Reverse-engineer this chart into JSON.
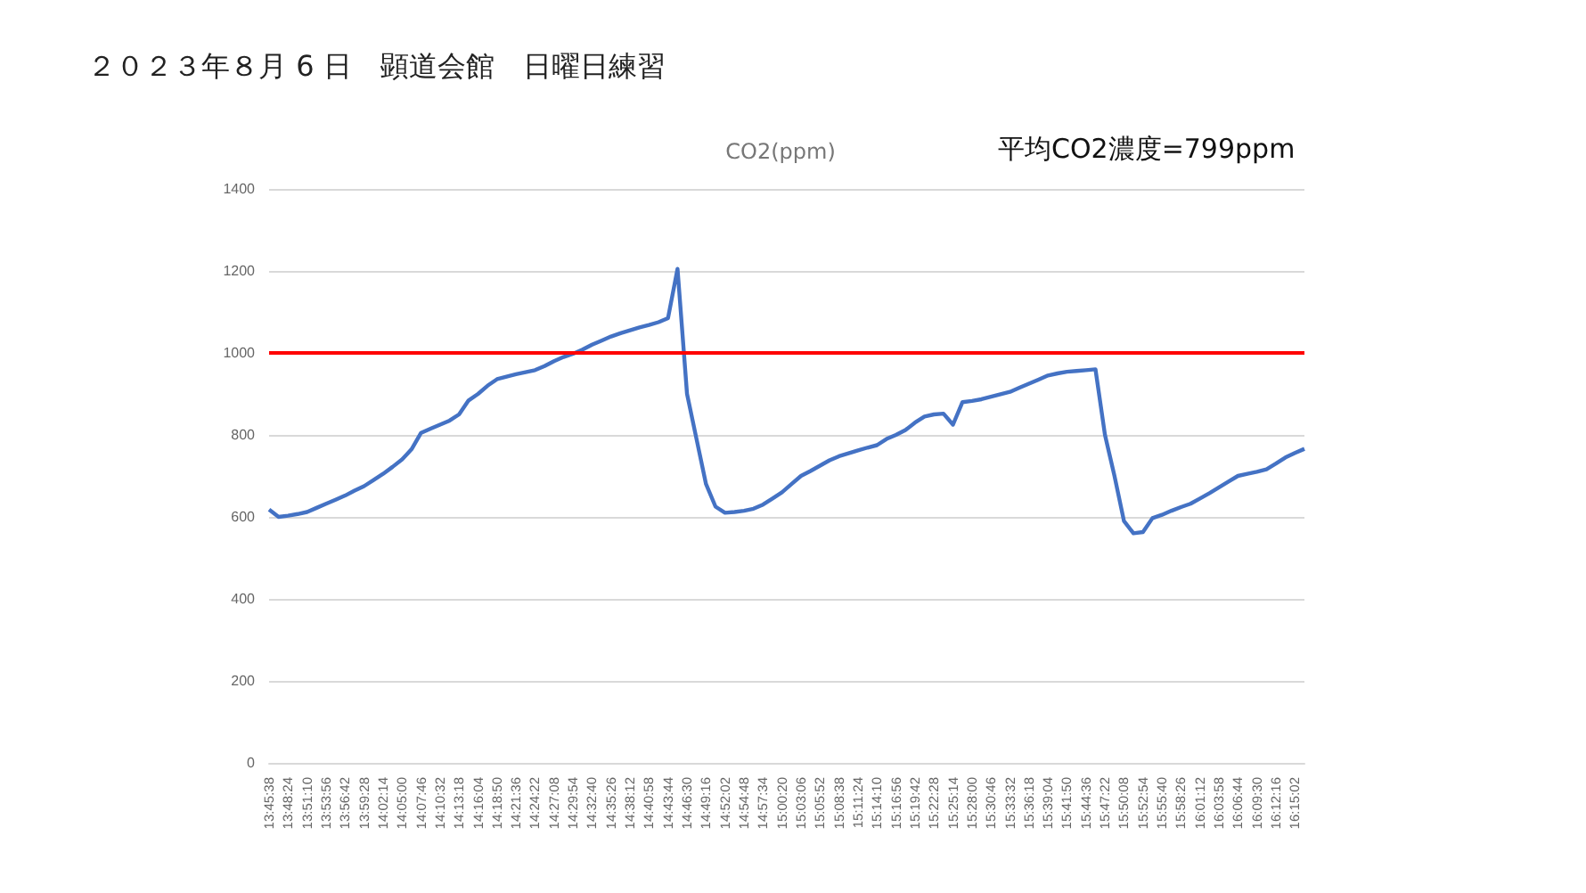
{
  "chart_data": {
    "type": "line",
    "title": "２０２３年８月 6 日　顕道会館　日曜日練習",
    "subtitle": "CO2(ppm)",
    "annotations": [
      "平均CO2濃度=799ppm"
    ],
    "categories": [
      "13:45:38",
      null,
      "13:48:24",
      null,
      "13:51:10",
      null,
      "13:53:56",
      null,
      "13:56:42",
      null,
      "13:59:28",
      null,
      "14:02:14",
      null,
      "14:05:00",
      null,
      "14:07:46",
      null,
      "14:10:32",
      null,
      "14:13:18",
      null,
      "14:16:04",
      null,
      "14:18:50",
      null,
      "14:21:36",
      null,
      "14:24:22",
      null,
      "14:27:08",
      null,
      "14:29:54",
      null,
      "14:32:40",
      null,
      "14:35:26",
      null,
      "14:38:12",
      null,
      "14:40:58",
      null,
      "14:43:44",
      null,
      "14:46:30",
      null,
      "14:49:16",
      null,
      "14:52:02",
      null,
      "14:54:48",
      null,
      "14:57:34",
      null,
      "15:00:20",
      null,
      "15:03:06",
      null,
      "15:05:52",
      null,
      "15:08:38",
      null,
      "15:11:24",
      null,
      "15:14:10",
      null,
      "15:16:56",
      null,
      "15:19:42",
      null,
      "15:22:28",
      null,
      "15:25:14",
      null,
      "15:28:00",
      null,
      "15:30:46",
      null,
      "15:33:32",
      null,
      "15:36:18",
      null,
      "15:39:04",
      null,
      "15:41:50",
      null,
      "15:44:36",
      null,
      "15:47:22",
      null,
      "15:50:08",
      null,
      "15:52:54",
      null,
      "15:55:40",
      null,
      "15:58:26",
      null,
      "16:01:12",
      null,
      "16:03:58",
      null,
      "16:06:44",
      null,
      "16:09:30",
      null,
      "16:12:16",
      null,
      "16:15:02",
      null
    ],
    "series": [
      {
        "color": "#4472c4",
        "values": [
          618,
          600,
          603,
          607,
          612,
          622,
          632,
          642,
          652,
          664,
          675,
          690,
          705,
          722,
          740,
          765,
          805,
          815,
          825,
          835,
          850,
          884,
          900,
          920,
          936,
          942,
          948,
          953,
          958,
          968,
          980,
          990,
          998,
          1008,
          1020,
          1030,
          1040,
          1048,
          1055,
          1062,
          1068,
          1075,
          1085,
          1205,
          900,
          790,
          680,
          625,
          610,
          612,
          615,
          620,
          630,
          645,
          660,
          680,
          700,
          712,
          725,
          738,
          748,
          755,
          762,
          769,
          775,
          790,
          800,
          812,
          830,
          845,
          850,
          852,
          825,
          880,
          883,
          887,
          893,
          899,
          905,
          915,
          925,
          935,
          945,
          950,
          954,
          956,
          958,
          960,
          800,
          700,
          590,
          560,
          563,
          597,
          605,
          615,
          624,
          632,
          645,
          658,
          672,
          686,
          700,
          705,
          710,
          716,
          730,
          745,
          756,
          766
        ]
      }
    ],
    "ylim": [
      0,
      1400
    ],
    "yticks": [
      0,
      200,
      400,
      600,
      800,
      1000,
      1200,
      1400
    ],
    "ref_lines": [
      {
        "axis": "y",
        "value": 1000,
        "color": "#ff0000",
        "line_style": "solid"
      }
    ],
    "grid": "y",
    "marker": "none",
    "line_style": "solid"
  }
}
